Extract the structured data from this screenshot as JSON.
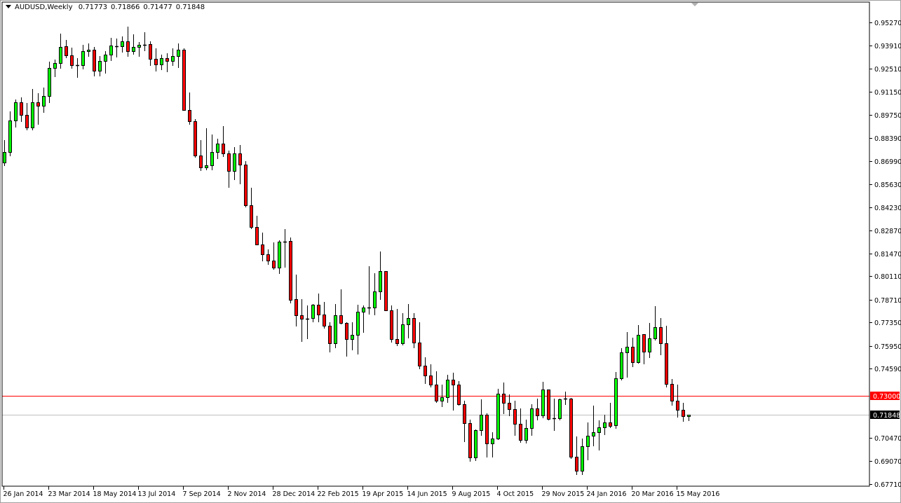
{
  "header": {
    "symbol_timeframe": "AUDUSD,Weekly",
    "open": "0.71773",
    "high": "0.71866",
    "low": "0.71477",
    "close": "0.71848"
  },
  "colors": {
    "bull": "#00ff00",
    "bear": "#ff0000",
    "outline": "#000000",
    "level_line": "#ff0000",
    "bid_line": "#c0c0c0"
  },
  "chart_data": {
    "type": "candlestick",
    "title": "AUDUSD,Weekly",
    "interval": "weekly",
    "ylim": [
      0.6771,
      0.9527
    ],
    "grid": false,
    "x_tick_labels": [
      "26 Jan 2014",
      "23 Mar 2014",
      "18 May 2014",
      "13 Jul 2014",
      "7 Sep 2014",
      "2 Nov 2014",
      "28 Dec 2014",
      "22 Feb 2015",
      "19 Apr 2015",
      "14 Jun 2015",
      "9 Aug 2015",
      "4 Oct 2015",
      "29 Nov 2015",
      "24 Jan 2016",
      "20 Mar 2016",
      "15 May 2016"
    ],
    "y_tick_labels": [
      "0.95270",
      "0.93910",
      "0.92510",
      "0.91150",
      "0.89750",
      "0.88390",
      "0.86990",
      "0.85630",
      "0.84230",
      "0.82870",
      "0.81470",
      "0.80110",
      "0.78710",
      "0.77350",
      "0.75950",
      "0.74590",
      "0.70470",
      "0.69070",
      "0.67710"
    ],
    "horizontal_line": {
      "value": 0.73,
      "label": "0.73000"
    },
    "bid_line": {
      "value": 0.71848,
      "label": "0.71848"
    },
    "ohlc_columns": [
      "open",
      "high",
      "low",
      "close"
    ],
    "candles": [
      [
        0.8691,
        0.8824,
        0.867,
        0.8753
      ],
      [
        0.8753,
        0.8996,
        0.8728,
        0.8942
      ],
      [
        0.8942,
        0.9067,
        0.89,
        0.905
      ],
      [
        0.905,
        0.908,
        0.8933,
        0.8975
      ],
      [
        0.8975,
        0.9046,
        0.8883,
        0.89
      ],
      [
        0.89,
        0.913,
        0.8883,
        0.905
      ],
      [
        0.905,
        0.9105,
        0.8916,
        0.9029
      ],
      [
        0.9029,
        0.9138,
        0.8987,
        0.9088
      ],
      [
        0.9088,
        0.9293,
        0.9046,
        0.9255
      ],
      [
        0.9255,
        0.9305,
        0.9201,
        0.9284
      ],
      [
        0.9284,
        0.946,
        0.9251,
        0.9381
      ],
      [
        0.9385,
        0.9422,
        0.9314,
        0.933
      ],
      [
        0.933,
        0.9376,
        0.9251,
        0.9272
      ],
      [
        0.927,
        0.9314,
        0.9196,
        0.9273
      ],
      [
        0.9272,
        0.9393,
        0.9247,
        0.9355
      ],
      [
        0.9355,
        0.9401,
        0.9322,
        0.9364
      ],
      [
        0.9364,
        0.9381,
        0.9205,
        0.9238
      ],
      [
        0.9238,
        0.9326,
        0.9205,
        0.9297
      ],
      [
        0.9297,
        0.9355,
        0.9222,
        0.9334
      ],
      [
        0.9334,
        0.9435,
        0.9297,
        0.9389
      ],
      [
        0.9385,
        0.9431,
        0.9318,
        0.9386
      ],
      [
        0.9385,
        0.9443,
        0.9347,
        0.9414
      ],
      [
        0.9414,
        0.9502,
        0.9322,
        0.9355
      ],
      [
        0.9355,
        0.9456,
        0.9334,
        0.9381
      ],
      [
        0.9381,
        0.941,
        0.9322,
        0.9393
      ],
      [
        0.9393,
        0.9468,
        0.9355,
        0.9394
      ],
      [
        0.9397,
        0.9414,
        0.9268,
        0.931
      ],
      [
        0.931,
        0.9372,
        0.9234,
        0.9276
      ],
      [
        0.9276,
        0.9334,
        0.9243,
        0.9314
      ],
      [
        0.9314,
        0.9343,
        0.923,
        0.9297
      ],
      [
        0.9297,
        0.9372,
        0.9268,
        0.9326
      ],
      [
        0.9326,
        0.9401,
        0.9255,
        0.9364
      ],
      [
        0.9364,
        0.9372,
        0.9,
        0.9004
      ],
      [
        0.9004,
        0.9109,
        0.8916,
        0.8937
      ],
      [
        0.8937,
        0.895,
        0.872,
        0.8733
      ],
      [
        0.8733,
        0.8824,
        0.864,
        0.8661
      ],
      [
        0.8661,
        0.8896,
        0.8645,
        0.8674
      ],
      [
        0.8674,
        0.8858,
        0.8645,
        0.8753
      ],
      [
        0.8753,
        0.8833,
        0.8711,
        0.8804
      ],
      [
        0.8804,
        0.8908,
        0.8724,
        0.8745
      ],
      [
        0.8745,
        0.8762,
        0.854,
        0.864
      ],
      [
        0.864,
        0.8783,
        0.8586,
        0.8745
      ],
      [
        0.8745,
        0.8795,
        0.8561,
        0.8678
      ],
      [
        0.8678,
        0.8699,
        0.8423,
        0.8435
      ],
      [
        0.8435,
        0.854,
        0.8293,
        0.8306
      ],
      [
        0.8306,
        0.8373,
        0.8197,
        0.8201
      ],
      [
        0.8201,
        0.8272,
        0.81,
        0.8142
      ],
      [
        0.8142,
        0.8172,
        0.808,
        0.8105
      ],
      [
        0.8105,
        0.8214,
        0.8051,
        0.8063
      ],
      [
        0.8063,
        0.8226,
        0.8026,
        0.8218
      ],
      [
        0.8218,
        0.8293,
        0.8063,
        0.8219
      ],
      [
        0.8222,
        0.8243,
        0.785,
        0.7871
      ],
      [
        0.7875,
        0.8021,
        0.7712,
        0.7779
      ],
      [
        0.7779,
        0.7875,
        0.762,
        0.7758
      ],
      [
        0.7758,
        0.7837,
        0.7637,
        0.7759
      ],
      [
        0.7762,
        0.7846,
        0.7737,
        0.7842
      ],
      [
        0.7842,
        0.7909,
        0.7737,
        0.7783
      ],
      [
        0.7783,
        0.7858,
        0.7699,
        0.7716
      ],
      [
        0.7716,
        0.7737,
        0.7557,
        0.7612
      ],
      [
        0.7612,
        0.7846,
        0.7582,
        0.7779
      ],
      [
        0.7779,
        0.7934,
        0.7725,
        0.7733
      ],
      [
        0.7733,
        0.7737,
        0.7532,
        0.7637
      ],
      [
        0.7637,
        0.7737,
        0.757,
        0.7662
      ],
      [
        0.7662,
        0.7842,
        0.7545,
        0.78
      ],
      [
        0.78,
        0.7837,
        0.7674,
        0.7825
      ],
      [
        0.7825,
        0.8072,
        0.7783,
        0.7826
      ],
      [
        0.7825,
        0.803,
        0.7779,
        0.7921
      ],
      [
        0.7921,
        0.8159,
        0.7871,
        0.8042
      ],
      [
        0.8042,
        0.8042,
        0.7804,
        0.7808
      ],
      [
        0.7808,
        0.7837,
        0.7616,
        0.7637
      ],
      [
        0.7637,
        0.7817,
        0.7595,
        0.7612
      ],
      [
        0.7612,
        0.7792,
        0.7599,
        0.7725
      ],
      [
        0.7725,
        0.7846,
        0.7641,
        0.7762
      ],
      [
        0.7762,
        0.7792,
        0.7582,
        0.7616
      ],
      [
        0.7616,
        0.7737,
        0.7457,
        0.7478
      ],
      [
        0.7478,
        0.7528,
        0.7369,
        0.7419
      ],
      [
        0.7419,
        0.7486,
        0.7348,
        0.7365
      ],
      [
        0.7365,
        0.7444,
        0.7256,
        0.7269
      ],
      [
        0.7269,
        0.7365,
        0.7231,
        0.729
      ],
      [
        0.729,
        0.7424,
        0.7256,
        0.7394
      ],
      [
        0.7394,
        0.7436,
        0.721,
        0.7365
      ],
      [
        0.7365,
        0.7386,
        0.7239,
        0.7248
      ],
      [
        0.7248,
        0.7269,
        0.7022,
        0.7135
      ],
      [
        0.7135,
        0.7156,
        0.6905,
        0.693
      ],
      [
        0.693,
        0.7097,
        0.6909,
        0.7093
      ],
      [
        0.7093,
        0.7277,
        0.706,
        0.7185
      ],
      [
        0.7185,
        0.7193,
        0.693,
        0.7013
      ],
      [
        0.7013,
        0.7081,
        0.693,
        0.7043
      ],
      [
        0.7043,
        0.734,
        0.7035,
        0.7311
      ],
      [
        0.7311,
        0.7378,
        0.7189,
        0.7256
      ],
      [
        0.7256,
        0.7306,
        0.7177,
        0.7219
      ],
      [
        0.7219,
        0.7269,
        0.706,
        0.7131
      ],
      [
        0.7131,
        0.7223,
        0.7018,
        0.7035
      ],
      [
        0.7035,
        0.7156,
        0.7013,
        0.7106
      ],
      [
        0.7106,
        0.7248,
        0.706,
        0.7223
      ],
      [
        0.7223,
        0.7281,
        0.7152,
        0.7181
      ],
      [
        0.7181,
        0.7382,
        0.7164,
        0.7336
      ],
      [
        0.7336,
        0.7336,
        0.7152,
        0.716
      ],
      [
        0.7164,
        0.7281,
        0.7089,
        0.7165
      ],
      [
        0.7164,
        0.7281,
        0.7152,
        0.7277
      ],
      [
        0.7281,
        0.7323,
        0.7244,
        0.728
      ],
      [
        0.7281,
        0.7285,
        0.6922,
        0.6934
      ],
      [
        0.6934,
        0.7055,
        0.6825,
        0.685
      ],
      [
        0.685,
        0.7043,
        0.6825,
        0.6997
      ],
      [
        0.6997,
        0.7139,
        0.6913,
        0.706
      ],
      [
        0.706,
        0.7239,
        0.6997,
        0.7081
      ],
      [
        0.7081,
        0.7152,
        0.6972,
        0.711
      ],
      [
        0.711,
        0.7185,
        0.7064,
        0.7139
      ],
      [
        0.7139,
        0.7256,
        0.7106,
        0.7118
      ],
      [
        0.7122,
        0.744,
        0.7102,
        0.7403
      ],
      [
        0.7403,
        0.7582,
        0.739,
        0.7557
      ],
      [
        0.7557,
        0.7679,
        0.7407,
        0.7591
      ],
      [
        0.7591,
        0.7645,
        0.747,
        0.7499
      ],
      [
        0.7499,
        0.772,
        0.7491,
        0.7662
      ],
      [
        0.7666,
        0.7666,
        0.7486,
        0.7561
      ],
      [
        0.7561,
        0.7733,
        0.7524,
        0.7641
      ],
      [
        0.7641,
        0.7833,
        0.7628,
        0.7708
      ],
      [
        0.7708,
        0.7762,
        0.7541,
        0.7612
      ],
      [
        0.7612,
        0.7716,
        0.7348,
        0.7369
      ],
      [
        0.7369,
        0.7398,
        0.7239,
        0.7269
      ],
      [
        0.7269,
        0.7365,
        0.7168,
        0.7215
      ],
      [
        0.7215,
        0.7256,
        0.7143,
        0.7177
      ],
      [
        0.71773,
        0.71866,
        0.71477,
        0.71848
      ]
    ]
  }
}
